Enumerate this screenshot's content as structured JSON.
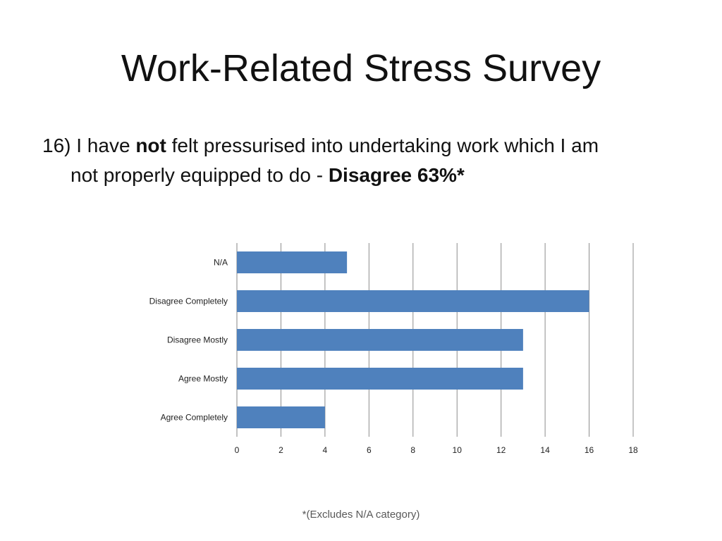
{
  "slide": {
    "title": "Work-Related Stress Survey",
    "question_prefix": "16) I have ",
    "question_emphasis": "not",
    "question_middle": " felt pressurised into undertaking work which I am",
    "question_line2": "not properly equipped to do - ",
    "question_result": "Disagree 63%*",
    "footnote": "*(Excludes N/A category)"
  },
  "chart_data": {
    "type": "bar",
    "orientation": "horizontal",
    "categories": [
      "N/A",
      "Disagree Completely",
      "Disagree Mostly",
      "Agree Mostly",
      "Agree Completely"
    ],
    "values": [
      5,
      16,
      13,
      13,
      4
    ],
    "xlim": [
      0,
      18
    ],
    "xticks": [
      "0",
      "2",
      "4",
      "6",
      "8",
      "10",
      "12",
      "14",
      "16",
      "18"
    ],
    "grid": "vertical",
    "legend": "none",
    "bar_color": "#4F81BD"
  }
}
